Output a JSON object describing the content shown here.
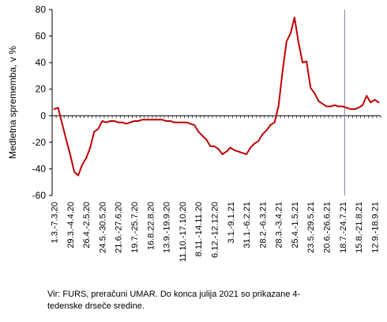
{
  "chart_data": {
    "type": "line",
    "ylabel": "Medletna sprememba, v %",
    "xlabel": "",
    "ylim": [
      -60,
      80
    ],
    "yticks": [
      -60,
      -40,
      -20,
      0,
      20,
      40,
      60,
      80
    ],
    "grid": false,
    "legend": "none",
    "line_color": "#C00000",
    "vline_color": "#7A7F9A",
    "vline_after_label": "18.7.-24.7.21",
    "tick_labels": [
      "1.3.-7.3.20",
      "29.3.-4.4.20",
      "26.4.-2.5.20",
      "24.5.-30.5.20",
      "21.6.-27.6.20",
      "19.7.-25.7.20",
      "16.8.22.8.20",
      "13.9.-19.9.20",
      "11.10.-17.10.20",
      "8.11.-14.11.20",
      "6.12.-12.12.20",
      "3.1.-9.1.21",
      "31.1.-6.2.21",
      "28.2.-6.3.21",
      "28.3.-3.4.21",
      "25.4.-1.5.21",
      "23.5.-29.5.21",
      "20.6.-26.6.21",
      "18.7.-24.7.21",
      "15.8.-21.8.21",
      "12.9.-18.9.21"
    ],
    "series": [
      {
        "values": [
          5,
          6,
          -6,
          -18,
          -29,
          -42,
          -45,
          -37,
          -32,
          -24,
          -12,
          -10,
          -4,
          -5,
          -4,
          -4,
          -5,
          -5,
          -6,
          -5,
          -4,
          -4,
          -3,
          -3,
          -3,
          -3,
          -3,
          -3,
          -4,
          -4,
          -5,
          -5,
          -5,
          -5,
          -6,
          -7,
          -12,
          -15,
          -18,
          -23,
          -23,
          -25,
          -29,
          -27,
          -24,
          -26,
          -27,
          -28,
          -29,
          -24,
          -21,
          -19,
          -14,
          -11,
          -7,
          -5,
          7,
          33,
          56,
          62,
          74,
          55,
          40,
          41,
          21,
          17,
          11,
          9,
          7,
          7,
          8,
          7,
          7,
          6,
          5,
          5,
          6,
          8,
          15,
          10,
          12,
          10
        ]
      }
    ]
  },
  "source_note": {
    "line1": "Vir: FURS, preračuni UMAR. Do konca julija 2021 so prikazane 4-",
    "line2": "tedenske drseče sredine."
  }
}
